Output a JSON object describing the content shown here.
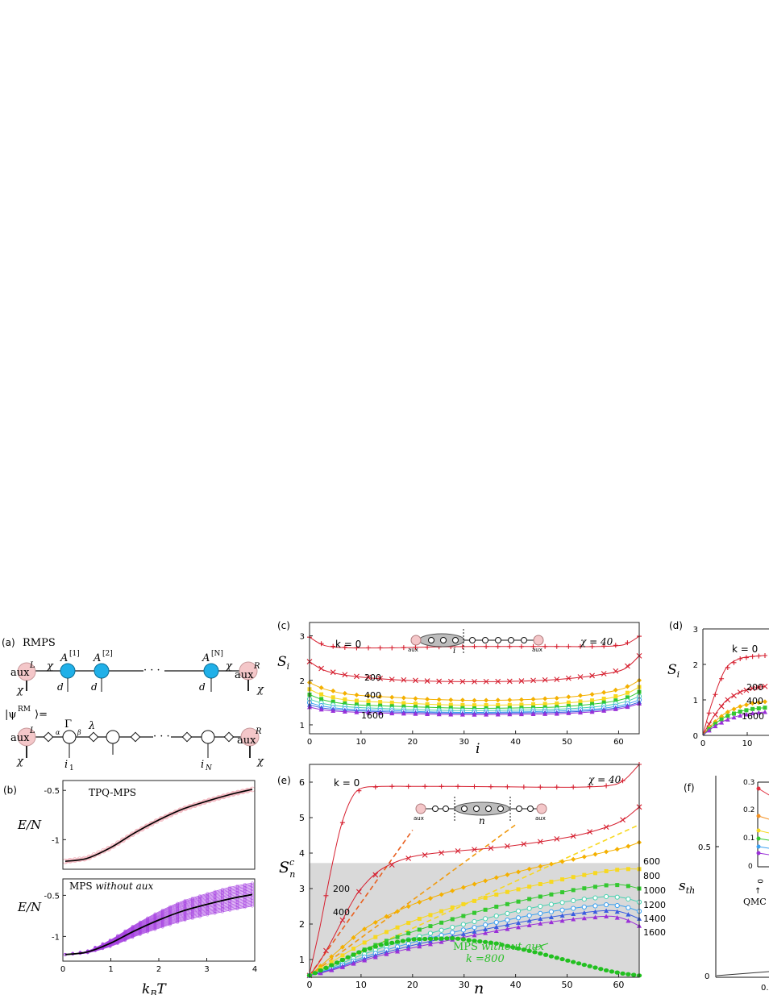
{
  "panels": {
    "a": {
      "label": "(a)",
      "title": "RMPS",
      "row1": {
        "auxL": "aux",
        "auxL_sup": "L",
        "auxR": "aux",
        "auxR_sup": "R",
        "chi": "χ",
        "d": "d",
        "dots": "· · ·",
        "tensors": [
          {
            "base": "A",
            "sup": "[1]"
          },
          {
            "base": "A",
            "sup": "[2]"
          },
          {
            "base": "A",
            "sup": "[N]"
          }
        ]
      },
      "row2": {
        "ket": "|ψ",
        "ket_sup": "RM",
        "ket_end": "⟩=",
        "gamma": "Γ",
        "lambda": "λ",
        "alpha": "α",
        "beta": "β",
        "i1": "i",
        "i1_sub": "1",
        "iN": "i",
        "iN_sub": "N",
        "dots": "· · ·"
      }
    },
    "b": {
      "label": "(b)",
      "ylabel": "E/N",
      "xlabel_base": "k",
      "xlabel_sub": "B",
      "xlabel_end": "T",
      "top_label": "TPQ-MPS",
      "bottom_label_main": "MPS ",
      "bottom_label_ital": "without aux",
      "xticks": [
        "0",
        "1",
        "2",
        "3",
        "4"
      ],
      "top_yticks": [
        "-0.5",
        "-1"
      ],
      "bottom_yticks": [
        "-0.5",
        "-1"
      ],
      "colors": {
        "tpq": "#f2b3bc",
        "mps": "#a43ee0",
        "mean": "#000000"
      }
    },
    "c": {
      "label": "(c)",
      "ylabel_base": "S",
      "ylabel_sub": "i",
      "xlabel": "i",
      "chi_label": "χ = 40",
      "inset_i": "i",
      "aux": "aux",
      "xticks": [
        "0",
        "10",
        "20",
        "30",
        "40",
        "50",
        "60"
      ],
      "yticks": [
        "1",
        "2",
        "3"
      ],
      "labels": {
        "k0": "k = 0",
        "k200": "200",
        "k400": "400",
        "k1600": "1600"
      }
    },
    "d": {
      "label": "(d)",
      "ylabel_base": "S",
      "ylabel_sub": "i",
      "xticks": [
        "0",
        "10"
      ],
      "yticks": [
        "0",
        "1",
        "2",
        "3"
      ],
      "labels": {
        "k0": "k = 0",
        "k200": "200",
        "k400": "400",
        "k1600": "1600"
      }
    },
    "e": {
      "label": "(e)",
      "ylabel_base": "S",
      "ylabel_sub": "n",
      "ylabel_sup": "c",
      "xlabel": "n",
      "chi_label": "χ = 40",
      "inset_n": "n",
      "aux": "aux",
      "xticks": [
        "0",
        "10",
        "20",
        "30",
        "40",
        "50",
        "60"
      ],
      "yticks": [
        "1",
        "2",
        "3",
        "4",
        "5",
        "6"
      ],
      "labels": {
        "k0": "k = 0",
        "k200": "200",
        "k400": "400"
      },
      "right_labels": [
        "600",
        "800",
        "1000",
        "1200",
        "1400",
        "1600"
      ],
      "mps_label_main": "MPS ",
      "mps_label_ital": "without aux",
      "mps_k": "k =800"
    },
    "f": {
      "label": "(f)",
      "ylabel_base": "s",
      "ylabel_sub": "th",
      "yticks": [
        "0",
        "0.5"
      ],
      "inset_yticks": [
        "0",
        "0.1",
        "0.2",
        "0.3"
      ],
      "inset_x0": "0",
      "qmc": "QMC",
      "partial_x": "0."
    }
  },
  "chart_data": [
    {
      "panel": "b-top",
      "type": "line",
      "title": "TPQ-MPS",
      "xlabel": "k_B T",
      "ylabel": "E/N",
      "xlim": [
        0,
        4
      ],
      "ylim": [
        -1.3,
        -0.4
      ],
      "x": [
        0.05,
        0.5,
        1.0,
        1.5,
        2.0,
        2.5,
        3.0,
        3.5,
        3.95
      ],
      "series": [
        {
          "values": [
            -1.22,
            -1.19,
            -1.08,
            -0.93,
            -0.8,
            -0.69,
            -0.61,
            -0.54,
            -0.49
          ]
        }
      ]
    },
    {
      "panel": "b-bottom",
      "type": "line",
      "title": "MPS without aux",
      "xlabel": "k_B T",
      "ylabel": "E/N",
      "xlim": [
        0,
        4
      ],
      "ylim": [
        -1.3,
        -0.3
      ],
      "x": [
        0.05,
        0.5,
        1.0,
        1.5,
        2.0,
        2.5,
        3.0,
        3.5,
        3.95
      ],
      "series": [
        {
          "values": [
            -1.22,
            -1.19,
            -1.08,
            -0.93,
            -0.8,
            -0.69,
            -0.61,
            -0.54,
            -0.49
          ]
        }
      ],
      "spread": [
        0.0,
        0.01,
        0.04,
        0.07,
        0.1,
        0.12,
        0.13,
        0.14,
        0.14
      ]
    },
    {
      "panel": "c",
      "type": "line",
      "xlabel": "i",
      "ylabel": "S_i",
      "xlim": [
        0,
        64
      ],
      "ylim": [
        0.8,
        3.3
      ],
      "x": [
        0,
        3,
        8,
        16,
        24,
        32,
        40,
        48,
        56,
        61,
        64
      ],
      "series": [
        {
          "name": "k = 0",
          "color": "#d62030",
          "marker": "plus",
          "values": [
            2.97,
            2.78,
            2.73,
            2.73,
            2.75,
            2.76,
            2.76,
            2.76,
            2.76,
            2.8,
            2.99
          ]
        },
        {
          "name": "200",
          "color": "#d62030",
          "marker": "x",
          "values": [
            2.42,
            2.22,
            2.1,
            2.02,
            1.98,
            1.97,
            1.98,
            2.02,
            2.12,
            2.25,
            2.55
          ]
        },
        {
          "name": "400",
          "color": "#f4b000",
          "marker": "diamond",
          "values": [
            1.95,
            1.8,
            1.68,
            1.62,
            1.57,
            1.55,
            1.56,
            1.6,
            1.7,
            1.82,
            2.0
          ]
        },
        {
          "color": "#f7d820",
          "marker": "square",
          "values": [
            1.8,
            1.65,
            1.55,
            1.5,
            1.46,
            1.44,
            1.45,
            1.48,
            1.56,
            1.68,
            1.85
          ]
        },
        {
          "color": "#34c830",
          "marker": "square",
          "values": [
            1.68,
            1.55,
            1.46,
            1.42,
            1.39,
            1.37,
            1.38,
            1.4,
            1.48,
            1.58,
            1.74
          ]
        },
        {
          "color": "#4ad2b0",
          "marker": "circle",
          "values": [
            1.58,
            1.47,
            1.4,
            1.36,
            1.33,
            1.32,
            1.33,
            1.35,
            1.41,
            1.51,
            1.64
          ]
        },
        {
          "color": "#3aa0f0",
          "marker": "circle",
          "values": [
            1.5,
            1.41,
            1.35,
            1.32,
            1.29,
            1.28,
            1.29,
            1.31,
            1.36,
            1.45,
            1.56
          ]
        },
        {
          "color": "#3a5ce0",
          "marker": "triangle",
          "values": [
            1.45,
            1.37,
            1.32,
            1.29,
            1.27,
            1.26,
            1.27,
            1.28,
            1.33,
            1.41,
            1.51
          ]
        },
        {
          "name": "1600",
          "color": "#9a30d8",
          "marker": "triangle",
          "values": [
            1.4,
            1.33,
            1.29,
            1.26,
            1.24,
            1.23,
            1.24,
            1.25,
            1.3,
            1.38,
            1.48
          ]
        }
      ]
    },
    {
      "panel": "d",
      "type": "line",
      "ylabel": "S_i",
      "xlim": [
        0,
        64
      ],
      "ylim": [
        0,
        3
      ],
      "x": [
        0,
        2,
        5,
        8,
        11,
        14
      ],
      "series": [
        {
          "name": "k = 0",
          "color": "#d62030",
          "marker": "plus",
          "values": [
            0.0,
            0.9,
            1.85,
            2.15,
            2.22,
            2.25
          ]
        },
        {
          "name": "200",
          "color": "#d62030",
          "marker": "x",
          "values": [
            0.0,
            0.45,
            0.95,
            1.2,
            1.32,
            1.38
          ]
        },
        {
          "name": "400",
          "color": "#f4b000",
          "marker": "diamond",
          "values": [
            0.0,
            0.3,
            0.62,
            0.8,
            0.9,
            0.95
          ]
        },
        {
          "color": "#34c830",
          "marker": "square",
          "values": [
            0.0,
            0.25,
            0.52,
            0.66,
            0.74,
            0.78
          ]
        },
        {
          "name": "1600",
          "color": "#9a30d8",
          "marker": "triangle",
          "values": [
            0.0,
            0.2,
            0.42,
            0.55,
            0.62,
            0.66
          ]
        }
      ]
    },
    {
      "panel": "e",
      "type": "line",
      "xlabel": "n",
      "ylabel": "S_n^c",
      "xlim": [
        0,
        64
      ],
      "ylim": [
        0.5,
        6.5
      ],
      "x": [
        0,
        2,
        4,
        6,
        8,
        10,
        14,
        20,
        28,
        36,
        44,
        52,
        58,
        61,
        64
      ],
      "series": [
        {
          "name": "k = 0",
          "color": "#d62030",
          "marker": "plus",
          "values": [
            0.6,
            1.9,
            3.4,
            4.7,
            5.5,
            5.82,
            5.88,
            5.88,
            5.88,
            5.87,
            5.86,
            5.86,
            5.9,
            6.05,
            6.5
          ]
        },
        {
          "name": "200",
          "color": "#d62030",
          "marker": "x",
          "values": [
            0.55,
            0.95,
            1.45,
            2.0,
            2.55,
            3.0,
            3.55,
            3.9,
            4.05,
            4.15,
            4.3,
            4.5,
            4.75,
            4.95,
            5.3
          ]
        },
        {
          "name": "400",
          "color": "#f4b000",
          "marker": "diamond",
          "values": [
            0.55,
            0.8,
            1.05,
            1.3,
            1.55,
            1.8,
            2.15,
            2.55,
            2.95,
            3.3,
            3.6,
            3.85,
            4.05,
            4.15,
            4.3
          ]
        },
        {
          "name": "600",
          "color": "#f7d820",
          "marker": "square",
          "values": [
            0.55,
            0.72,
            0.9,
            1.08,
            1.26,
            1.43,
            1.72,
            2.08,
            2.48,
            2.82,
            3.1,
            3.35,
            3.5,
            3.55,
            3.55
          ]
        },
        {
          "name": "800",
          "color": "#34c830",
          "marker": "square",
          "values": [
            0.55,
            0.68,
            0.82,
            0.96,
            1.1,
            1.24,
            1.48,
            1.78,
            2.15,
            2.48,
            2.75,
            2.98,
            3.1,
            3.1,
            3.0
          ]
        },
        {
          "name": "1000",
          "color": "#4ad2b0",
          "marker": "circle",
          "values": [
            0.55,
            0.65,
            0.76,
            0.88,
            1.0,
            1.12,
            1.33,
            1.6,
            1.92,
            2.22,
            2.48,
            2.68,
            2.78,
            2.74,
            2.62
          ]
        },
        {
          "name": "1200",
          "color": "#3aa0f0",
          "marker": "circle",
          "values": [
            0.55,
            0.63,
            0.73,
            0.83,
            0.93,
            1.04,
            1.23,
            1.48,
            1.77,
            2.04,
            2.28,
            2.46,
            2.55,
            2.5,
            2.36
          ]
        },
        {
          "name": "1400",
          "color": "#3a5ce0",
          "marker": "triangle",
          "values": [
            0.55,
            0.62,
            0.71,
            0.8,
            0.89,
            0.99,
            1.17,
            1.4,
            1.66,
            1.91,
            2.13,
            2.3,
            2.38,
            2.32,
            2.15
          ]
        },
        {
          "name": "1600",
          "color": "#9a30d8",
          "marker": "triangle",
          "values": [
            0.55,
            0.61,
            0.69,
            0.77,
            0.86,
            0.95,
            1.12,
            1.33,
            1.57,
            1.8,
            2.0,
            2.15,
            2.22,
            2.15,
            1.95
          ]
        },
        {
          "name": "MPS without aux k =800",
          "color": "#22c020",
          "marker": "dot",
          "values": [
            0.55,
            0.68,
            0.82,
            0.96,
            1.1,
            1.23,
            1.42,
            1.57,
            1.6,
            1.46,
            1.2,
            0.9,
            0.68,
            0.6,
            0.55
          ]
        }
      ],
      "fits": [
        {
          "color": "#e86020",
          "x": [
            0,
            20
          ],
          "values": [
            0.55,
            4.65
          ]
        },
        {
          "color": "#f09a10",
          "x": [
            0,
            40
          ],
          "values": [
            0.55,
            4.8
          ]
        },
        {
          "color": "#f7d820",
          "x": [
            0,
            64
          ],
          "values": [
            0.55,
            4.8
          ]
        }
      ],
      "shaded_region": {
        "x": [
          0,
          64
        ],
        "y": [
          0.5,
          3.72
        ]
      }
    },
    {
      "panel": "f",
      "type": "line",
      "ylabel": "s_th",
      "ylim": [
        0,
        0.75
      ],
      "inset_ylim": [
        0,
        0.3
      ]
    }
  ]
}
